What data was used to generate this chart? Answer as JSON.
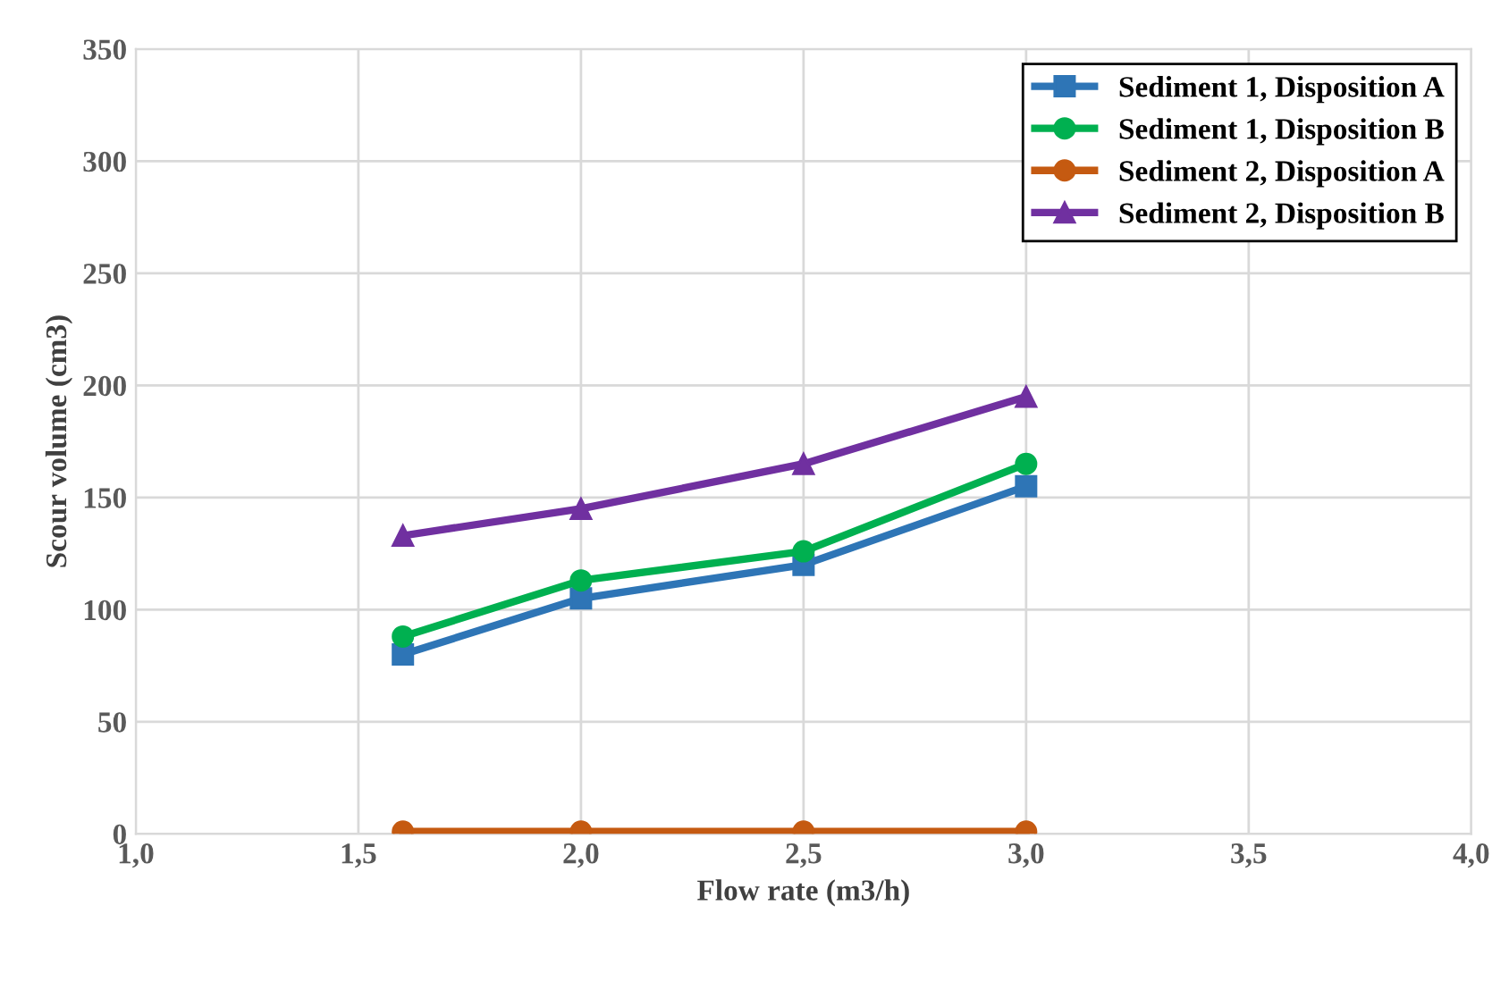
{
  "chart_data": {
    "type": "line",
    "xlabel": "Flow rate (m3/h)",
    "ylabel": "Scour volume (cm3)",
    "x": [
      1.6,
      2.0,
      2.5,
      3.0
    ],
    "series": [
      {
        "name": "Sediment 1, Disposition A",
        "color": "#2e75b6",
        "marker": "square",
        "values": [
          80,
          105,
          120,
          155
        ]
      },
      {
        "name": "Sediment 1, Disposition B",
        "color": "#00b050",
        "marker": "circle",
        "values": [
          88,
          113,
          126,
          165
        ]
      },
      {
        "name": "Sediment 2, Disposition A",
        "color": "#c55a11",
        "marker": "circle",
        "values": [
          1,
          1,
          1,
          1
        ]
      },
      {
        "name": "Sediment 2, Disposition B",
        "color": "#7030a0",
        "marker": "triangle",
        "values": [
          133,
          145,
          165,
          195
        ]
      }
    ],
    "xlim": [
      1.0,
      4.0
    ],
    "xticks": [
      {
        "value": 1.0,
        "label": "1,0"
      },
      {
        "value": 1.5,
        "label": "1,5"
      },
      {
        "value": 2.0,
        "label": "2,0"
      },
      {
        "value": 2.5,
        "label": "2,5"
      },
      {
        "value": 3.0,
        "label": "3,0"
      },
      {
        "value": 3.5,
        "label": "3,5"
      },
      {
        "value": 4.0,
        "label": "4,0"
      }
    ],
    "ylim": [
      0,
      350
    ],
    "yticks": [
      0,
      50,
      100,
      150,
      200,
      250,
      300,
      350
    ],
    "grid": true,
    "legend": "top right",
    "line_style": "solid"
  }
}
